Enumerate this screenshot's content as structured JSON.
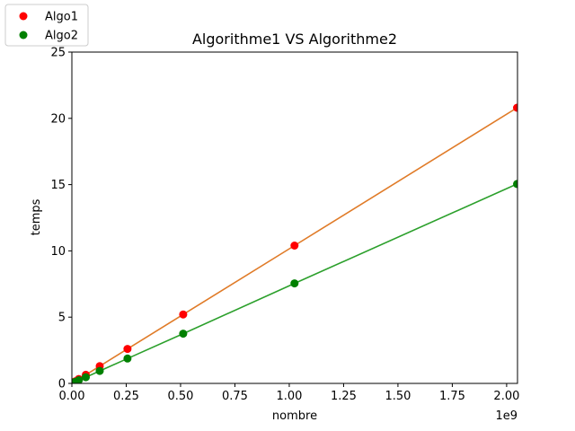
{
  "chart_data": {
    "type": "scatter",
    "title": "Algorithme1 VS Algorithme2",
    "xlabel": "nombre",
    "ylabel": "temps",
    "x_offset_text": "1e9",
    "xlim": [
      0,
      2.05
    ],
    "ylim": [
      0,
      25
    ],
    "xticks": [
      0.0,
      0.25,
      0.5,
      0.75,
      1.0,
      1.25,
      1.5,
      1.75,
      2.0
    ],
    "xtick_labels": [
      "0.00",
      "0.25",
      "0.50",
      "0.75",
      "1.00",
      "1.25",
      "1.50",
      "1.75",
      "2.00"
    ],
    "yticks": [
      0,
      5,
      10,
      15,
      20,
      25
    ],
    "ytick_labels": [
      "0",
      "5",
      "10",
      "15",
      "20",
      "25"
    ],
    "grid": false,
    "legend_position": "top-left",
    "series": [
      {
        "name": "Algo1",
        "marker_color": "#ff0000",
        "line_color": "#e07b28",
        "x": [
          0.001,
          0.002,
          0.004,
          0.008,
          0.016,
          0.032,
          0.064,
          0.128,
          0.256,
          0.512,
          1.024,
          2.048
        ],
        "y": [
          0.01,
          0.02,
          0.04,
          0.08,
          0.16,
          0.33,
          0.65,
          1.3,
          2.6,
          5.2,
          10.4,
          20.8
        ]
      },
      {
        "name": "Algo2",
        "marker_color": "#008000",
        "line_color": "#2ca02c",
        "x": [
          0.001,
          0.002,
          0.004,
          0.008,
          0.016,
          0.032,
          0.064,
          0.128,
          0.256,
          0.512,
          1.024,
          2.048
        ],
        "y": [
          0.007,
          0.015,
          0.03,
          0.06,
          0.12,
          0.24,
          0.47,
          0.94,
          1.88,
          3.75,
          7.55,
          15.05
        ]
      }
    ]
  }
}
